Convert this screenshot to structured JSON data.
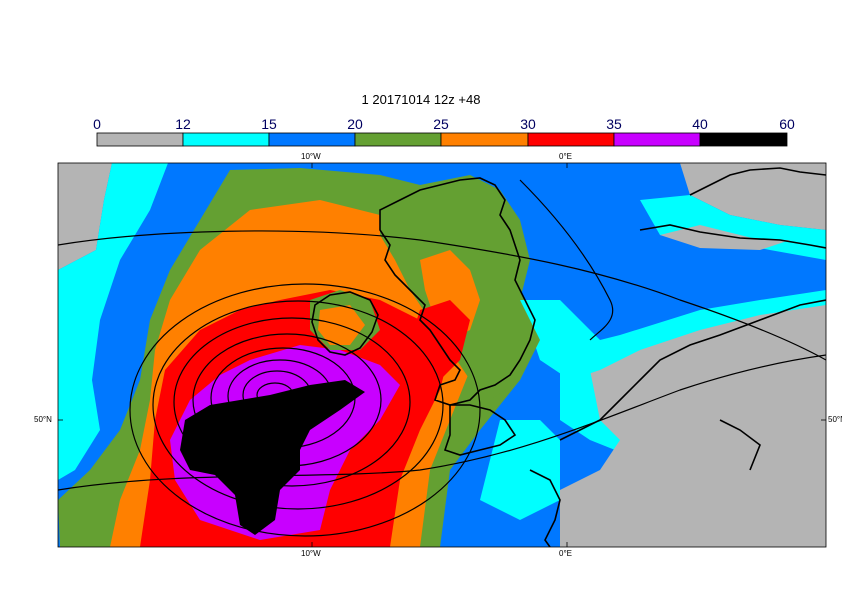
{
  "title": "1 20171014 12z +48",
  "colorbar": {
    "ticks": [
      "0",
      "12",
      "15",
      "20",
      "25",
      "30",
      "35",
      "40",
      "60"
    ],
    "colors": [
      "#b4b4b4",
      "#00ffff",
      "#0078ff",
      "#64a032",
      "#ff8000",
      "#ff0000",
      "#c800ff",
      "#000000"
    ]
  },
  "axes": {
    "top": [
      "10°W",
      "0°E"
    ],
    "bottom": [
      "10°W",
      "0°E"
    ],
    "left": [
      "50°N"
    ],
    "right": [
      "50°N"
    ]
  },
  "map_colors": {
    "land": "#b4b4b4",
    "c12": "#00ffff",
    "c15": "#0078ff",
    "c20": "#64a032",
    "c25": "#ff8000",
    "c30": "#ff0000",
    "c35": "#c800ff",
    "c40": "#000000"
  }
}
